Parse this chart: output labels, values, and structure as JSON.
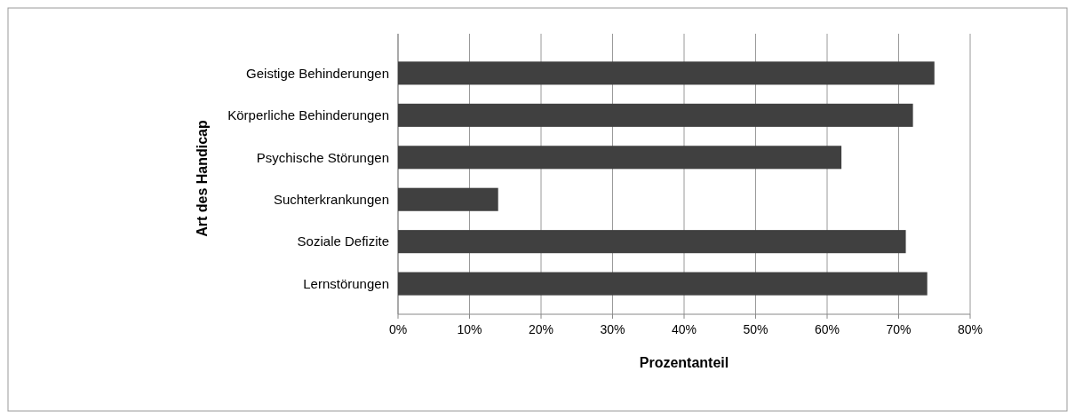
{
  "chart_data": {
    "type": "bar",
    "orientation": "horizontal",
    "xlabel": "Prozentanteil",
    "ylabel": "Art des Handicap",
    "categories": [
      "Geistige Behinderungen",
      "Körperliche Behinderungen",
      "Psychische Störungen",
      "Suchterkrankungen",
      "Soziale Defizite",
      "Lernstörungen"
    ],
    "values": [
      75,
      72,
      62,
      14,
      71,
      74
    ],
    "color": "#404040",
    "xlim": [
      0,
      80
    ],
    "xticks": [
      {
        "value": 0,
        "label": "0%"
      },
      {
        "value": 10,
        "label": "10%"
      },
      {
        "value": 20,
        "label": "20%"
      },
      {
        "value": 30,
        "label": "30%"
      },
      {
        "value": 40,
        "label": "40%"
      },
      {
        "value": 50,
        "label": "50%"
      },
      {
        "value": 60,
        "label": "60%"
      },
      {
        "value": 70,
        "label": "70%"
      },
      {
        "value": 80,
        "label": "80%"
      }
    ],
    "grid": "x"
  }
}
